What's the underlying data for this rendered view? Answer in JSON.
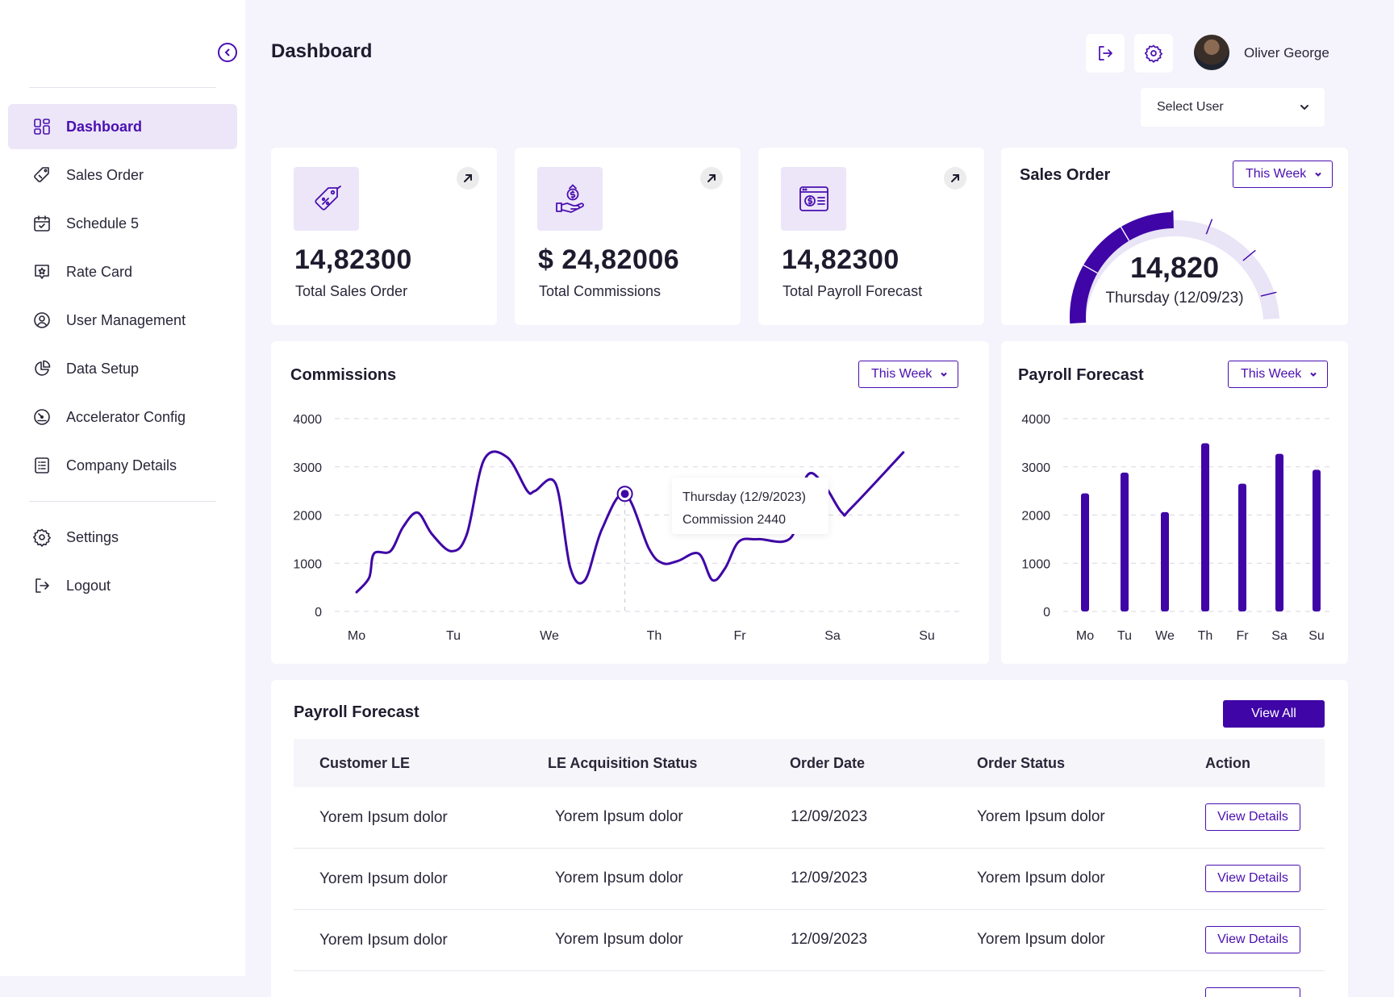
{
  "colors": {
    "accent": "#4a0fb0",
    "accent_dark": "#3f05a6",
    "accent_light": "#ece6f8",
    "background": "#f5f3fb",
    "gauge_track": "#e9e4f6"
  },
  "sidebar": {
    "items": [
      {
        "label": "Dashboard",
        "icon": "grid-icon",
        "active": true
      },
      {
        "label": "Sales Order",
        "icon": "tag-icon"
      },
      {
        "label": "Schedule 5",
        "icon": "calendar-check-icon"
      },
      {
        "label": "Rate Card",
        "icon": "star-chat-icon"
      },
      {
        "label": "User Management",
        "icon": "user-circle-icon"
      },
      {
        "label": "Data Setup",
        "icon": "pie-chart-icon"
      },
      {
        "label": "Accelerator Config",
        "icon": "speedometer-icon"
      },
      {
        "label": "Company Details",
        "icon": "document-list-icon"
      }
    ],
    "bottom_items": [
      {
        "label": "Settings",
        "icon": "gear-icon"
      },
      {
        "label": "Logout",
        "icon": "logout-icon"
      }
    ]
  },
  "header": {
    "title": "Dashboard",
    "user_name": "Oliver George",
    "select_user": "Select User"
  },
  "stats": [
    {
      "value": "14,82300",
      "label": "Total Sales Order",
      "icon": "price-tag-icon"
    },
    {
      "value": "$ 24,82006",
      "label": "Total Commissions",
      "icon": "money-hand-icon"
    },
    {
      "value": "14,82300",
      "label": "Total Payroll Forecast",
      "icon": "dollar-window-icon"
    }
  ],
  "sales_order_gauge": {
    "title": "Sales Order",
    "filter": "This Week",
    "value": "14,820",
    "date": "Thursday (12/09/23)",
    "fill_fraction": 0.5
  },
  "commissions": {
    "title": "Commissions",
    "filter": "This Week",
    "tooltip": {
      "date": "Thursday (12/9/2023)",
      "text": "Commission 2440"
    }
  },
  "payroll_chart": {
    "title": "Payroll Forecast",
    "filter": "This Week"
  },
  "chart_data": [
    {
      "type": "line",
      "title": "Commissions",
      "categories": [
        "Mo",
        "Tu",
        "We",
        "Th",
        "Fr",
        "Sa",
        "Su"
      ],
      "yticks": [
        0,
        1000,
        2000,
        3000,
        4000
      ],
      "ylim": [
        0,
        4000
      ],
      "grid": true,
      "series": [
        {
          "values_x": [
            0,
            0.13,
            0.18,
            0.35,
            0.48,
            0.63,
            0.78,
            0.98,
            1.14,
            1.32,
            1.56,
            1.77,
            1.85,
            2.06,
            2.2,
            2.34,
            2.5,
            2.72,
            2.95,
            3.1,
            3.28,
            3.52,
            3.68,
            3.83,
            3.99,
            4.2,
            4.56,
            4.72,
            4.9,
            5.1,
            5.2,
            5.75
          ],
          "values_y": [
            400,
            700,
            1200,
            1250,
            1750,
            2050,
            1600,
            1250,
            1600,
            3150,
            3200,
            2500,
            2500,
            2650,
            900,
            650,
            1700,
            2440,
            1300,
            1000,
            1050,
            1200,
            650,
            900,
            1450,
            1500,
            1550,
            2800,
            2650,
            2050,
            2150,
            3300
          ]
        }
      ]
    },
    {
      "type": "bar",
      "title": "Payroll Forecast",
      "categories": [
        "Mo",
        "Tu",
        "We",
        "Th",
        "Fr",
        "Sa",
        "Su"
      ],
      "values": [
        2450,
        2880,
        2060,
        3490,
        2650,
        3270,
        2940
      ],
      "yticks": [
        0,
        1000,
        2000,
        3000,
        4000
      ],
      "ylim": [
        0,
        4000
      ],
      "grid": true
    }
  ],
  "table": {
    "title": "Payroll Forecast",
    "view_all": "View All",
    "columns": [
      "Customer LE",
      "LE Acquisition Status",
      "Order Date",
      "Order Status",
      "Action"
    ],
    "rows": [
      {
        "customer": "Yorem Ipsum dolor",
        "status": "Yorem Ipsum dolor",
        "date": "12/09/2023",
        "order_status": "Yorem Ipsum dolor",
        "action": "View Details"
      },
      {
        "customer": "Yorem Ipsum dolor",
        "status": "Yorem Ipsum dolor",
        "date": "12/09/2023",
        "order_status": "Yorem Ipsum dolor",
        "action": "View Details"
      },
      {
        "customer": "Yorem Ipsum dolor",
        "status": "Yorem Ipsum dolor",
        "date": "12/09/2023",
        "order_status": "Yorem Ipsum dolor",
        "action": "View Details"
      }
    ]
  }
}
